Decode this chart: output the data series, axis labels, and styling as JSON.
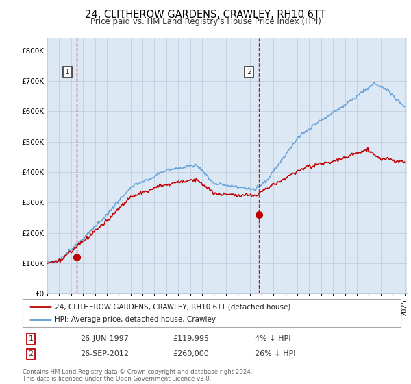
{
  "title": "24, CLITHEROW GARDENS, CRAWLEY, RH10 6TT",
  "subtitle": "Price paid vs. HM Land Registry's House Price Index (HPI)",
  "legend_line1": "24, CLITHEROW GARDENS, CRAWLEY, RH10 6TT (detached house)",
  "legend_line2": "HPI: Average price, detached house, Crawley",
  "sale1_label": "1",
  "sale1_date": "26-JUN-1997",
  "sale1_price": 119995,
  "sale1_text": "£119,995",
  "sale1_hpi": "4% ↓ HPI",
  "sale2_label": "2",
  "sale2_date": "26-SEP-2012",
  "sale2_price": 260000,
  "sale2_text": "£260,000",
  "sale2_hpi": "26% ↓ HPI",
  "footer": "Contains HM Land Registry data © Crown copyright and database right 2024.\nThis data is licensed under the Open Government Licence v3.0.",
  "hpi_color": "#5b9bd5",
  "price_color": "#c00000",
  "vline_color": "#c00000",
  "label_box_color": "#c00000",
  "background_color": "#ffffff",
  "chart_bg_color": "#dce9f5",
  "grid_color": "#c0cfe0",
  "ylim_min": 0,
  "ylim_max": 840000,
  "sale1_year": 1997.49,
  "sale2_year": 2012.75,
  "xmin": 1995.0,
  "xmax": 2025.2
}
